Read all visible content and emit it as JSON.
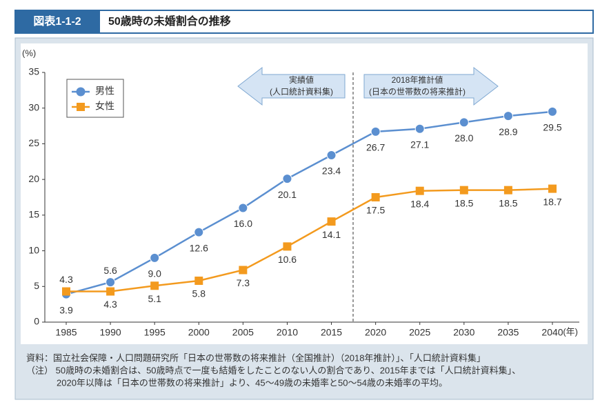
{
  "chart_data": {
    "type": "line",
    "figure_label": "図表1-1-2",
    "title": "50歳時の未婚割合の推移",
    "y_unit": "(%)",
    "x_unit": "(年)",
    "categories": [
      "1985",
      "1990",
      "1995",
      "2000",
      "2005",
      "2010",
      "2015",
      "2020",
      "2025",
      "2030",
      "2035",
      "2040"
    ],
    "series": [
      {
        "name": "男性",
        "color": "#5b8fd0",
        "marker": "circle",
        "values": [
          3.9,
          5.6,
          9.0,
          12.6,
          16.0,
          20.1,
          23.4,
          26.7,
          27.1,
          28.0,
          28.9,
          29.5
        ],
        "value_labels": [
          "3.9",
          "5.6",
          "9.0",
          "12.6",
          "16.0",
          "20.1",
          "23.4",
          "26.7",
          "27.1",
          "28.0",
          "28.9",
          "29.5"
        ]
      },
      {
        "name": "女性",
        "color": "#f39a1e",
        "marker": "square",
        "values": [
          4.3,
          4.3,
          5.1,
          5.8,
          7.3,
          10.6,
          14.1,
          17.5,
          18.4,
          18.5,
          18.5,
          18.7
        ],
        "value_labels": [
          "4.3",
          "4.3",
          "5.1",
          "5.8",
          "7.3",
          "10.6",
          "14.1",
          "17.5",
          "18.4",
          "18.5",
          "18.5",
          "18.7"
        ]
      }
    ],
    "ylim": [
      0,
      35
    ],
    "yticks": [
      0,
      5,
      10,
      15,
      20,
      25,
      30,
      35
    ],
    "annotations": [
      {
        "line1": "実績値",
        "line2": "(人口統計資料集)"
      },
      {
        "line1": "2018年推計値",
        "line2": "(日本の世帯数の将来推計)"
      }
    ],
    "notes": [
      "資料：国立社会保障・人口問題研究所「日本の世帯数の将来推計（全国推計）（2018年推計）」、「人口統計資料集」",
      "（注）  50歳時の未婚割合は、50歳時点で一度も結婚をしたことのない人の割合であり、2015年までは「人口統計資料集」、",
      "2020年以降は「日本の世帯数の将来推計」より、45～49歳の未婚率と50～54歳の未婚率の平均。"
    ]
  }
}
